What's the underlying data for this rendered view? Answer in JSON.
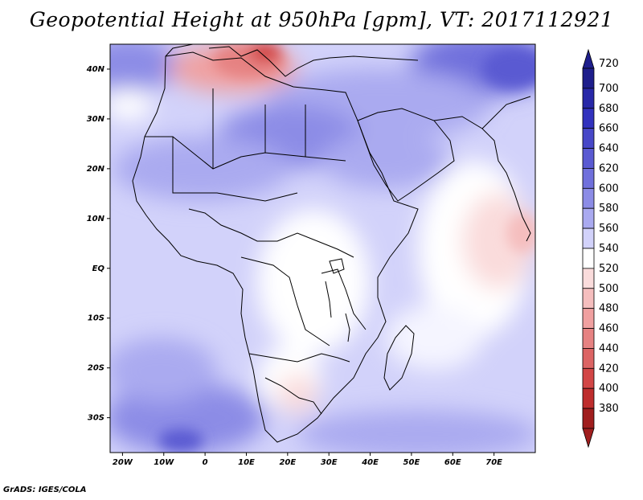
{
  "title": "Geopotential Height at 950hPa [gpm], VT: 2017112921",
  "credit": "GrADS: IGES/COLA",
  "map": {
    "type": "heatmap",
    "variable": "Geopotential Height",
    "level": "950hPa",
    "units": "gpm",
    "valid_time": "2017112921",
    "region": "Africa",
    "lon_range": [
      -23,
      80
    ],
    "lat_range": [
      -37,
      45
    ],
    "x_ticks": [
      "20W",
      "10W",
      "0",
      "10E",
      "20E",
      "30E",
      "40E",
      "50E",
      "60E",
      "70E"
    ],
    "x_tick_values": [
      -20,
      -10,
      0,
      10,
      20,
      30,
      40,
      50,
      60,
      70
    ],
    "y_ticks": [
      "40N",
      "30N",
      "20N",
      "10N",
      "EQ",
      "10S",
      "20S",
      "30S"
    ],
    "y_tick_values": [
      40,
      30,
      20,
      10,
      0,
      -10,
      -20,
      -30
    ]
  },
  "colorbar": {
    "levels": [
      "720",
      "700",
      "680",
      "660",
      "640",
      "620",
      "600",
      "580",
      "560",
      "540",
      "520",
      "500",
      "480",
      "460",
      "440",
      "420",
      "400",
      "380"
    ],
    "colors": [
      "#1e1e8c",
      "#2828a8",
      "#3232be",
      "#4848c8",
      "#5a5ad2",
      "#7070dc",
      "#8c8ce6",
      "#aaaaf0",
      "#d2d2fa",
      "#ffffff",
      "#fadcdc",
      "#f5bebe",
      "#f0a0a0",
      "#e68282",
      "#dc6464",
      "#d24646",
      "#be2d2d",
      "#a01e1e"
    ]
  },
  "colors": {
    "high": "#3232be",
    "mid": "#d2d2fa",
    "neutral": "#ffffff",
    "low": "#e85a5a",
    "coast": "#000000"
  }
}
